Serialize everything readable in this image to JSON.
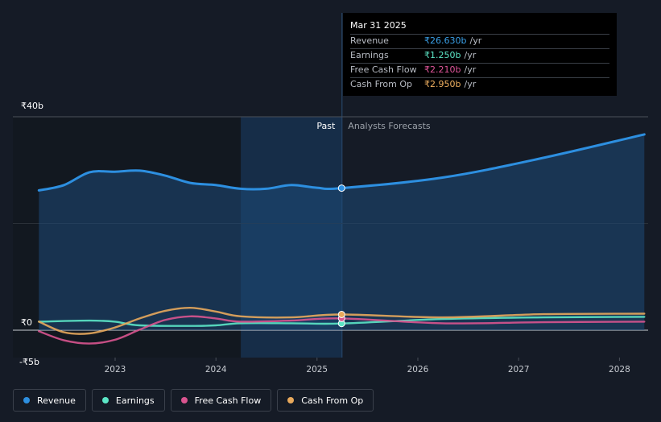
{
  "tooltip": {
    "date": "Mar 31 2025",
    "rows": [
      {
        "label": "Revenue",
        "value": "₹26.630b",
        "unit": "/yr",
        "color": "#3aa0e8"
      },
      {
        "label": "Earnings",
        "value": "₹1.250b",
        "unit": "/yr",
        "color": "#5ce6c6"
      },
      {
        "label": "Free Cash Flow",
        "value": "₹2.210b",
        "unit": "/yr",
        "color": "#e0559a"
      },
      {
        "label": "Cash From Op",
        "value": "₹2.950b",
        "unit": "/yr",
        "color": "#f0b060"
      }
    ]
  },
  "legend": [
    {
      "label": "Revenue",
      "color": "#2d8fe0"
    },
    {
      "label": "Earnings",
      "color": "#5ce6c6"
    },
    {
      "label": "Free Cash Flow",
      "color": "#d9548f"
    },
    {
      "label": "Cash From Op",
      "color": "#e8a95c"
    }
  ],
  "chart_data": {
    "type": "line",
    "y_unit": "₹ billions",
    "ylim": [
      -5,
      40
    ],
    "y_tick_labels": [
      "₹40b",
      "₹0",
      "-₹5b"
    ],
    "x_tick_labels": [
      "2023",
      "2024",
      "2025",
      "2026",
      "2027",
      "2028"
    ],
    "past_label": "Past",
    "forecast_label": "Analysts Forecasts",
    "highlight_date": "2025-03-31",
    "grid": true,
    "series": [
      {
        "name": "Revenue",
        "color": "#2d8fe0",
        "points": [
          [
            "2022-03-31",
            26.2
          ],
          [
            "2022-06-30",
            27.2
          ],
          [
            "2022-09-30",
            29.6
          ],
          [
            "2022-12-31",
            29.7
          ],
          [
            "2023-03-31",
            29.9
          ],
          [
            "2023-06-30",
            29.0
          ],
          [
            "2023-09-30",
            27.6
          ],
          [
            "2023-12-31",
            27.2
          ],
          [
            "2024-03-31",
            26.5
          ],
          [
            "2024-06-30",
            26.5
          ],
          [
            "2024-09-30",
            27.2
          ],
          [
            "2024-12-31",
            26.7
          ],
          [
            "2025-03-31",
            26.63
          ],
          [
            "2026-03-31",
            28.6
          ],
          [
            "2027-03-31",
            32.3
          ],
          [
            "2028-03-31",
            36.7
          ]
        ]
      },
      {
        "name": "Earnings",
        "color": "#5ce6c6",
        "points": [
          [
            "2022-03-31",
            1.6
          ],
          [
            "2022-09-30",
            1.8
          ],
          [
            "2022-12-31",
            1.6
          ],
          [
            "2023-03-31",
            0.9
          ],
          [
            "2023-09-30",
            0.8
          ],
          [
            "2023-12-31",
            0.9
          ],
          [
            "2024-03-31",
            1.3
          ],
          [
            "2024-09-30",
            1.3
          ],
          [
            "2025-03-31",
            1.25
          ],
          [
            "2026-03-31",
            2.1
          ],
          [
            "2027-03-31",
            2.4
          ],
          [
            "2028-03-31",
            2.5
          ]
        ]
      },
      {
        "name": "Free Cash Flow",
        "color": "#d9548f",
        "points": [
          [
            "2022-03-31",
            -0.2
          ],
          [
            "2022-06-30",
            -1.9
          ],
          [
            "2022-09-30",
            -2.5
          ],
          [
            "2022-12-31",
            -1.8
          ],
          [
            "2023-03-31",
            0.1
          ],
          [
            "2023-06-30",
            1.9
          ],
          [
            "2023-09-30",
            2.6
          ],
          [
            "2023-12-31",
            2.2
          ],
          [
            "2024-03-31",
            1.6
          ],
          [
            "2024-09-30",
            1.8
          ],
          [
            "2025-03-31",
            2.21
          ],
          [
            "2026-03-31",
            1.3
          ],
          [
            "2027-03-31",
            1.5
          ],
          [
            "2028-03-31",
            1.6
          ]
        ]
      },
      {
        "name": "Cash From Op",
        "color": "#e8a95c",
        "points": [
          [
            "2022-03-31",
            1.6
          ],
          [
            "2022-06-30",
            -0.4
          ],
          [
            "2022-09-30",
            -0.6
          ],
          [
            "2022-12-31",
            0.5
          ],
          [
            "2023-03-31",
            2.2
          ],
          [
            "2023-06-30",
            3.6
          ],
          [
            "2023-09-30",
            4.2
          ],
          [
            "2023-12-31",
            3.5
          ],
          [
            "2024-03-31",
            2.6
          ],
          [
            "2024-09-30",
            2.4
          ],
          [
            "2025-03-31",
            2.95
          ],
          [
            "2026-03-31",
            2.4
          ],
          [
            "2027-03-31",
            3.0
          ],
          [
            "2028-03-31",
            3.1
          ]
        ]
      }
    ]
  }
}
